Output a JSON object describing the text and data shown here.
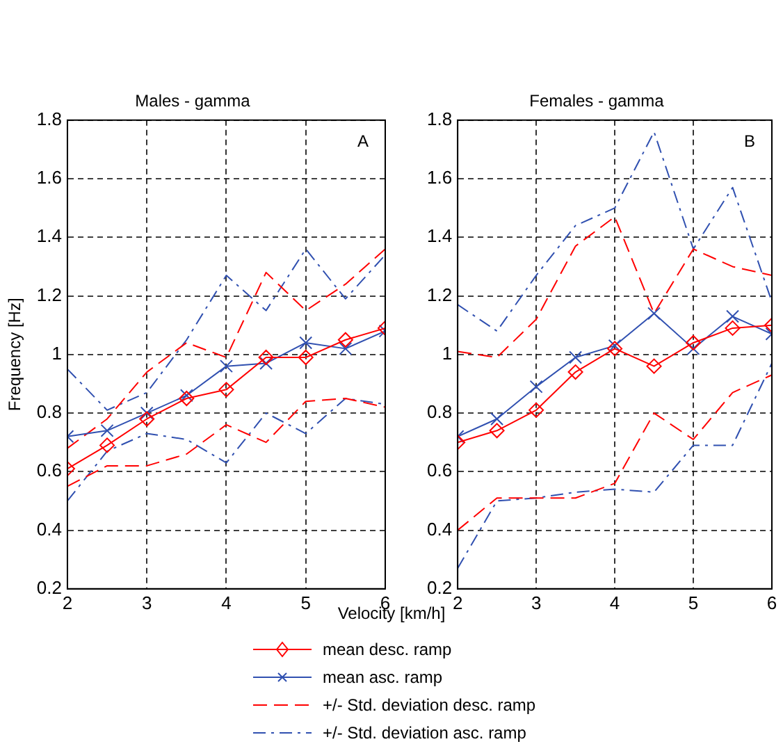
{
  "chart_data": [
    {
      "type": "line",
      "title": "Males - gamma",
      "xlabel": "Velocity [km/h]",
      "ylabel": "Frequency [Hz]",
      "annotations": [
        "A"
      ],
      "x": [
        2,
        2.5,
        3,
        3.5,
        4,
        4.5,
        5,
        5.5,
        6
      ],
      "xlim": [
        2,
        6
      ],
      "xticks": [
        2,
        3,
        4,
        5,
        6
      ],
      "ylim": [
        0.2,
        1.8
      ],
      "yticks": [
        0.2,
        0.4,
        0.6,
        0.8,
        1,
        1.2,
        1.4,
        1.6,
        1.8
      ],
      "grid": true,
      "legend": "bottom",
      "series": [
        {
          "name": "mean desc. ramp",
          "color": "#ff0000",
          "marker": "diamond",
          "line_style": "solid",
          "values": [
            0.61,
            0.69,
            0.78,
            0.85,
            0.88,
            0.99,
            0.99,
            1.05,
            1.09
          ]
        },
        {
          "name": "mean asc. ramp",
          "color": "#3050b0",
          "marker": "cross",
          "line_style": "solid",
          "values": [
            0.72,
            0.74,
            0.8,
            0.86,
            0.96,
            0.97,
            1.04,
            1.02,
            1.08
          ]
        },
        {
          "name": "+/- Std. deviation desc. ramp",
          "color": "#ff0000",
          "marker": "none",
          "line_style": "dashed",
          "values": [
            0.68,
            0.78,
            0.94,
            1.04,
            0.99,
            1.28,
            1.15,
            1.24,
            1.36
          ]
        },
        {
          "color": "#ff0000",
          "marker": "none",
          "line_style": "dashed",
          "values": [
            0.55,
            0.62,
            0.62,
            0.66,
            0.76,
            0.7,
            0.84,
            0.85,
            0.82
          ]
        },
        {
          "name": "+/- Std. deviation asc. ramp",
          "color": "#3050b0",
          "marker": "none",
          "line_style": "dashdot",
          "values": [
            0.95,
            0.81,
            0.87,
            1.05,
            1.27,
            1.15,
            1.36,
            1.19,
            1.34
          ]
        },
        {
          "color": "#3050b0",
          "marker": "none",
          "line_style": "dashdot",
          "values": [
            0.5,
            0.67,
            0.73,
            0.71,
            0.63,
            0.8,
            0.73,
            0.85,
            0.83
          ]
        }
      ]
    },
    {
      "type": "line",
      "title": "Females - gamma",
      "annotations": [
        "B"
      ],
      "x": [
        2,
        2.5,
        3,
        3.5,
        4,
        4.5,
        5,
        5.5,
        6
      ],
      "xlim": [
        2,
        6
      ],
      "xticks": [
        2,
        3,
        4,
        5,
        6
      ],
      "ylim": [
        0.2,
        1.8
      ],
      "yticks": [
        0.2,
        0.4,
        0.6,
        0.8,
        1,
        1.2,
        1.4,
        1.6,
        1.8
      ],
      "grid": true,
      "legend": "bottom",
      "series": [
        {
          "name": "mean desc. ramp",
          "color": "#ff0000",
          "marker": "diamond",
          "line_style": "solid",
          "values": [
            0.7,
            0.74,
            0.81,
            0.94,
            1.02,
            0.96,
            1.04,
            1.09,
            1.1
          ]
        },
        {
          "name": "mean asc. ramp",
          "color": "#3050b0",
          "marker": "cross",
          "line_style": "solid",
          "values": [
            0.72,
            0.78,
            0.89,
            0.99,
            1.03,
            1.14,
            1.02,
            1.13,
            1.07
          ]
        },
        {
          "name": "+/- Std. deviation desc. ramp",
          "color": "#ff0000",
          "marker": "none",
          "line_style": "dashed",
          "values": [
            1.01,
            0.99,
            1.12,
            1.37,
            1.47,
            1.14,
            1.36,
            1.3,
            1.27
          ]
        },
        {
          "color": "#ff0000",
          "marker": "none",
          "line_style": "dashed",
          "values": [
            0.4,
            0.51,
            0.51,
            0.51,
            0.56,
            0.8,
            0.71,
            0.87,
            0.93
          ]
        },
        {
          "name": "+/- Std. deviation asc. ramp",
          "color": "#3050b0",
          "marker": "none",
          "line_style": "dashdot",
          "values": [
            1.17,
            1.08,
            1.27,
            1.44,
            1.5,
            1.76,
            1.36,
            1.57,
            1.18
          ]
        },
        {
          "color": "#3050b0",
          "marker": "none",
          "line_style": "dashdot",
          "values": [
            0.27,
            0.5,
            0.51,
            0.53,
            0.54,
            0.53,
            0.69,
            0.69,
            0.97
          ]
        }
      ]
    }
  ]
}
